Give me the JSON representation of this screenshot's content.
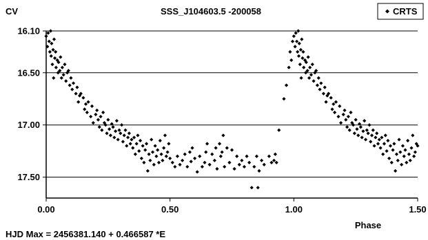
{
  "chart_data": {
    "type": "scatter",
    "title": "SSS_J104603.5 -200058",
    "ylabel": "CV",
    "xlabel": "Phase",
    "footnote": "HJD Max = 2456381.140 + 0.466587 *E",
    "xlim": [
      0,
      1.5
    ],
    "ylim": [
      16.1,
      17.7
    ],
    "y_reversed": true,
    "x_ticks": [
      0,
      0.5,
      1.0,
      1.5
    ],
    "x_tick_labels": [
      "0.00",
      "0.50",
      "1.00",
      "1.50"
    ],
    "y_ticks": [
      16.1,
      16.5,
      17.0,
      17.5
    ],
    "y_tick_labels": [
      "16.10",
      "16.50",
      "17.00",
      "17.50"
    ],
    "grid": "horizontal",
    "legend_position": "top-right",
    "series": [
      {
        "name": "CRTS",
        "color": "#000000",
        "marker": "diamond",
        "points": [
          [
            0.0,
            16.15
          ],
          [
            0.005,
            16.25
          ],
          [
            0.008,
            16.12
          ],
          [
            0.012,
            16.2
          ],
          [
            0.015,
            16.3
          ],
          [
            0.018,
            16.1
          ],
          [
            0.02,
            16.34
          ],
          [
            0.022,
            16.22
          ],
          [
            0.025,
            16.42
          ],
          [
            0.028,
            16.28
          ],
          [
            0.03,
            16.55
          ],
          [
            0.032,
            16.18
          ],
          [
            0.035,
            16.36
          ],
          [
            0.038,
            16.3
          ],
          [
            0.04,
            16.45
          ],
          [
            0.045,
            16.38
          ],
          [
            0.048,
            16.5
          ],
          [
            0.05,
            16.4
          ],
          [
            0.055,
            16.48
          ],
          [
            0.058,
            16.35
          ],
          [
            0.062,
            16.55
          ],
          [
            0.065,
            16.45
          ],
          [
            0.07,
            16.52
          ],
          [
            0.075,
            16.42
          ],
          [
            0.08,
            16.58
          ],
          [
            0.085,
            16.5
          ],
          [
            0.09,
            16.48
          ],
          [
            0.095,
            16.62
          ],
          [
            0.1,
            16.55
          ],
          [
            0.105,
            16.66
          ],
          [
            0.11,
            16.6
          ],
          [
            0.12,
            16.7
          ],
          [
            0.125,
            16.64
          ],
          [
            0.13,
            16.78
          ],
          [
            0.135,
            16.72
          ],
          [
            0.14,
            16.7
          ],
          [
            0.15,
            16.74
          ],
          [
            0.155,
            16.85
          ],
          [
            0.16,
            16.8
          ],
          [
            0.165,
            16.88
          ],
          [
            0.17,
            16.78
          ],
          [
            0.18,
            16.92
          ],
          [
            0.185,
            16.82
          ],
          [
            0.19,
            16.98
          ],
          [
            0.2,
            16.9
          ],
          [
            0.205,
            16.86
          ],
          [
            0.21,
            16.95
          ],
          [
            0.215,
            17.02
          ],
          [
            0.22,
            16.92
          ],
          [
            0.225,
            17.05
          ],
          [
            0.23,
            16.88
          ],
          [
            0.235,
            16.98
          ],
          [
            0.24,
            17.0
          ],
          [
            0.245,
            17.08
          ],
          [
            0.25,
            16.95
          ],
          [
            0.255,
            17.04
          ],
          [
            0.26,
            17.1
          ],
          [
            0.265,
            16.99
          ],
          [
            0.27,
            17.02
          ],
          [
            0.275,
            17.12
          ],
          [
            0.28,
            17.06
          ],
          [
            0.285,
            16.96
          ],
          [
            0.29,
            17.14
          ],
          [
            0.295,
            17.05
          ],
          [
            0.3,
            17.08
          ],
          [
            0.305,
            17.0
          ],
          [
            0.31,
            17.16
          ],
          [
            0.315,
            17.1
          ],
          [
            0.32,
            17.05
          ],
          [
            0.325,
            17.2
          ],
          [
            0.33,
            17.12
          ],
          [
            0.335,
            17.08
          ],
          [
            0.34,
            17.18
          ],
          [
            0.345,
            17.14
          ],
          [
            0.35,
            17.22
          ],
          [
            0.355,
            17.12
          ],
          [
            0.36,
            17.28
          ],
          [
            0.365,
            17.18
          ],
          [
            0.37,
            17.1
          ],
          [
            0.375,
            17.25
          ],
          [
            0.38,
            17.15
          ],
          [
            0.385,
            17.32
          ],
          [
            0.39,
            17.2
          ],
          [
            0.395,
            17.36
          ],
          [
            0.4,
            17.24
          ],
          [
            0.405,
            17.18
          ],
          [
            0.41,
            17.44
          ],
          [
            0.415,
            17.28
          ],
          [
            0.42,
            17.34
          ],
          [
            0.425,
            17.14
          ],
          [
            0.43,
            17.26
          ],
          [
            0.435,
            17.38
          ],
          [
            0.44,
            17.2
          ],
          [
            0.445,
            17.3
          ],
          [
            0.45,
            17.24
          ],
          [
            0.455,
            17.36
          ],
          [
            0.46,
            17.15
          ],
          [
            0.465,
            17.28
          ],
          [
            0.47,
            17.34
          ],
          [
            0.475,
            17.22
          ],
          [
            0.48,
            17.1
          ],
          [
            0.485,
            17.3
          ],
          [
            0.49,
            17.26
          ],
          [
            0.495,
            17.18
          ],
          [
            0.5,
            17.32
          ],
          [
            0.51,
            17.36
          ],
          [
            0.52,
            17.4
          ],
          [
            0.53,
            17.3
          ],
          [
            0.54,
            17.38
          ],
          [
            0.55,
            17.34
          ],
          [
            0.56,
            17.28
          ],
          [
            0.57,
            17.4
          ],
          [
            0.58,
            17.26
          ],
          [
            0.585,
            17.35
          ],
          [
            0.59,
            17.22
          ],
          [
            0.6,
            17.32
          ],
          [
            0.61,
            17.45
          ],
          [
            0.62,
            17.3
          ],
          [
            0.63,
            17.4
          ],
          [
            0.64,
            17.36
          ],
          [
            0.645,
            17.26
          ],
          [
            0.65,
            17.18
          ],
          [
            0.66,
            17.38
          ],
          [
            0.67,
            17.28
          ],
          [
            0.68,
            17.34
          ],
          [
            0.685,
            17.22
          ],
          [
            0.69,
            17.42
          ],
          [
            0.7,
            17.18
          ],
          [
            0.705,
            17.3
          ],
          [
            0.71,
            17.26
          ],
          [
            0.715,
            17.1
          ],
          [
            0.72,
            17.4
          ],
          [
            0.73,
            17.22
          ],
          [
            0.74,
            17.36
          ],
          [
            0.75,
            17.24
          ],
          [
            0.76,
            17.42
          ],
          [
            0.77,
            17.3
          ],
          [
            0.78,
            17.38
          ],
          [
            0.79,
            17.34
          ],
          [
            0.8,
            17.4
          ],
          [
            0.81,
            17.3
          ],
          [
            0.82,
            17.36
          ],
          [
            0.83,
            17.6
          ],
          [
            0.84,
            17.4
          ],
          [
            0.85,
            17.3
          ],
          [
            0.855,
            17.6
          ],
          [
            0.86,
            17.44
          ],
          [
            0.87,
            17.34
          ],
          [
            0.88,
            17.38
          ],
          [
            0.9,
            17.3
          ],
          [
            0.91,
            17.36
          ],
          [
            0.92,
            17.34
          ],
          [
            0.925,
            17.28
          ],
          [
            0.93,
            17.36
          ],
          [
            0.94,
            17.05
          ],
          [
            0.96,
            16.75
          ],
          [
            0.97,
            16.62
          ],
          [
            0.98,
            16.45
          ],
          [
            0.985,
            16.3
          ],
          [
            0.99,
            16.38
          ],
          [
            0.995,
            16.2
          ],
          [
            1.0,
            16.15
          ],
          [
            1.005,
            16.25
          ],
          [
            1.008,
            16.12
          ],
          [
            1.012,
            16.2
          ],
          [
            1.015,
            16.3
          ],
          [
            1.018,
            16.1
          ],
          [
            1.02,
            16.34
          ],
          [
            1.022,
            16.22
          ],
          [
            1.025,
            16.42
          ],
          [
            1.028,
            16.28
          ],
          [
            1.03,
            16.55
          ],
          [
            1.032,
            16.18
          ],
          [
            1.035,
            16.36
          ],
          [
            1.038,
            16.3
          ],
          [
            1.04,
            16.45
          ],
          [
            1.045,
            16.38
          ],
          [
            1.048,
            16.5
          ],
          [
            1.05,
            16.4
          ],
          [
            1.055,
            16.48
          ],
          [
            1.058,
            16.35
          ],
          [
            1.062,
            16.55
          ],
          [
            1.065,
            16.45
          ],
          [
            1.07,
            16.52
          ],
          [
            1.075,
            16.42
          ],
          [
            1.08,
            16.58
          ],
          [
            1.085,
            16.5
          ],
          [
            1.09,
            16.48
          ],
          [
            1.095,
            16.62
          ],
          [
            1.1,
            16.55
          ],
          [
            1.105,
            16.66
          ],
          [
            1.11,
            16.6
          ],
          [
            1.12,
            16.7
          ],
          [
            1.125,
            16.64
          ],
          [
            1.13,
            16.78
          ],
          [
            1.135,
            16.72
          ],
          [
            1.14,
            16.7
          ],
          [
            1.15,
            16.74
          ],
          [
            1.155,
            16.85
          ],
          [
            1.16,
            16.8
          ],
          [
            1.165,
            16.88
          ],
          [
            1.17,
            16.78
          ],
          [
            1.18,
            16.92
          ],
          [
            1.185,
            16.82
          ],
          [
            1.19,
            16.98
          ],
          [
            1.2,
            16.9
          ],
          [
            1.205,
            16.86
          ],
          [
            1.21,
            16.95
          ],
          [
            1.215,
            17.02
          ],
          [
            1.22,
            16.92
          ],
          [
            1.225,
            17.05
          ],
          [
            1.23,
            16.88
          ],
          [
            1.235,
            16.98
          ],
          [
            1.24,
            17.0
          ],
          [
            1.245,
            17.08
          ],
          [
            1.25,
            16.95
          ],
          [
            1.255,
            17.04
          ],
          [
            1.26,
            17.1
          ],
          [
            1.265,
            16.99
          ],
          [
            1.27,
            17.02
          ],
          [
            1.275,
            17.12
          ],
          [
            1.28,
            17.06
          ],
          [
            1.285,
            16.96
          ],
          [
            1.29,
            17.14
          ],
          [
            1.295,
            17.05
          ],
          [
            1.3,
            17.08
          ],
          [
            1.305,
            17.0
          ],
          [
            1.31,
            17.16
          ],
          [
            1.315,
            17.1
          ],
          [
            1.32,
            17.05
          ],
          [
            1.325,
            17.2
          ],
          [
            1.33,
            17.12
          ],
          [
            1.335,
            17.08
          ],
          [
            1.34,
            17.18
          ],
          [
            1.345,
            17.14
          ],
          [
            1.35,
            17.22
          ],
          [
            1.355,
            17.12
          ],
          [
            1.36,
            17.28
          ],
          [
            1.365,
            17.18
          ],
          [
            1.37,
            17.1
          ],
          [
            1.375,
            17.25
          ],
          [
            1.38,
            17.15
          ],
          [
            1.385,
            17.32
          ],
          [
            1.39,
            17.2
          ],
          [
            1.395,
            17.36
          ],
          [
            1.4,
            17.24
          ],
          [
            1.405,
            17.18
          ],
          [
            1.41,
            17.44
          ],
          [
            1.415,
            17.28
          ],
          [
            1.42,
            17.34
          ],
          [
            1.425,
            17.14
          ],
          [
            1.43,
            17.26
          ],
          [
            1.435,
            17.38
          ],
          [
            1.44,
            17.2
          ],
          [
            1.445,
            17.3
          ],
          [
            1.45,
            17.24
          ],
          [
            1.455,
            17.36
          ],
          [
            1.46,
            17.15
          ],
          [
            1.465,
            17.28
          ],
          [
            1.47,
            17.34
          ],
          [
            1.475,
            17.22
          ],
          [
            1.48,
            17.1
          ],
          [
            1.485,
            17.3
          ],
          [
            1.49,
            17.26
          ],
          [
            1.495,
            17.18
          ],
          [
            1.5,
            17.2
          ]
        ]
      }
    ]
  }
}
